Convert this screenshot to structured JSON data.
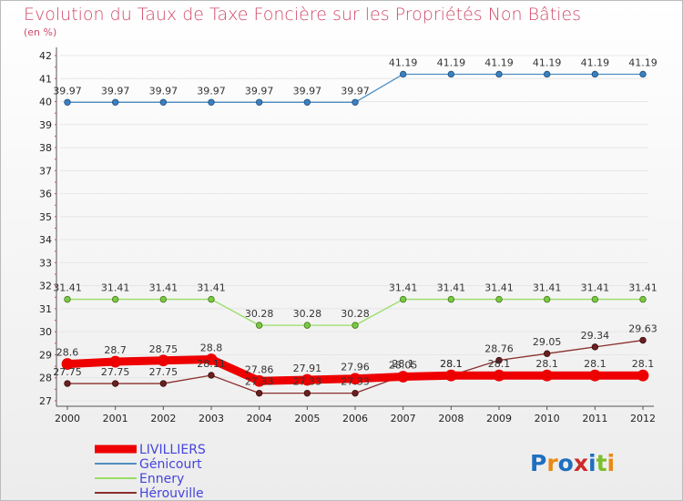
{
  "chart_data": {
    "type": "line",
    "title": "Evolution du Taux de Taxe Foncière sur les Propriétés Non Bâties",
    "ylabel": "(en %)",
    "ylim": [
      27,
      42
    ],
    "yticks": [
      27,
      28,
      29,
      30,
      31,
      32,
      33,
      34,
      35,
      36,
      37,
      38,
      39,
      40,
      41,
      42
    ],
    "categories": [
      "2000",
      "2001",
      "2002",
      "2003",
      "2004",
      "2005",
      "2006",
      "2007",
      "2008",
      "2009",
      "2010",
      "2011",
      "2012"
    ],
    "series": [
      {
        "name": "LIVILLIERS",
        "color": "#ee0000",
        "values": [
          28.6,
          28.7,
          28.75,
          28.8,
          27.86,
          27.91,
          27.96,
          28.05,
          28.1,
          28.1,
          28.1,
          28.1,
          28.1
        ],
        "labels": [
          "28.6",
          "28.7",
          "28.75",
          "28.8",
          "27.86",
          "27.91",
          "27.96",
          "28.05",
          "28.1",
          "28.1",
          "28.1",
          "28.1",
          "28.1"
        ]
      },
      {
        "name": "Génicourt",
        "color": "#4f8fc4",
        "values": [
          39.97,
          39.97,
          39.97,
          39.97,
          39.97,
          39.97,
          39.97,
          41.19,
          41.19,
          41.19,
          41.19,
          41.19,
          41.19
        ],
        "labels": [
          "39.97",
          "39.97",
          "39.97",
          "39.97",
          "39.97",
          "39.97",
          "39.97",
          "41.19",
          "41.19",
          "41.19",
          "41.19",
          "41.19",
          "41.19"
        ]
      },
      {
        "name": "Ennery",
        "color": "#99dd66",
        "values": [
          31.41,
          31.41,
          31.41,
          31.41,
          30.28,
          30.28,
          30.28,
          31.41,
          31.41,
          31.41,
          31.41,
          31.41,
          31.41
        ],
        "labels": [
          "31.41",
          "31.41",
          "31.41",
          "31.41",
          "30.28",
          "30.28",
          "30.28",
          "31.41",
          "31.41",
          "31.41",
          "31.41",
          "31.41",
          "31.41"
        ]
      },
      {
        "name": "Hérouville",
        "color": "#8b2e2e",
        "values": [
          27.75,
          27.75,
          27.75,
          28.11,
          27.33,
          27.33,
          27.33,
          28.1,
          28.1,
          28.76,
          29.05,
          29.34,
          29.63
        ],
        "labels": [
          "27.75",
          "27.75",
          "27.75",
          "28.11",
          "27.33",
          "27.33",
          "27.33",
          "28.1",
          "28.1",
          "28.76",
          "29.05",
          "29.34",
          "29.63"
        ]
      }
    ],
    "legend": [
      "LIVILLIERS",
      "Génicourt",
      "Ennery",
      "Hérouville"
    ]
  },
  "logo": {
    "text": "Proxiti"
  }
}
